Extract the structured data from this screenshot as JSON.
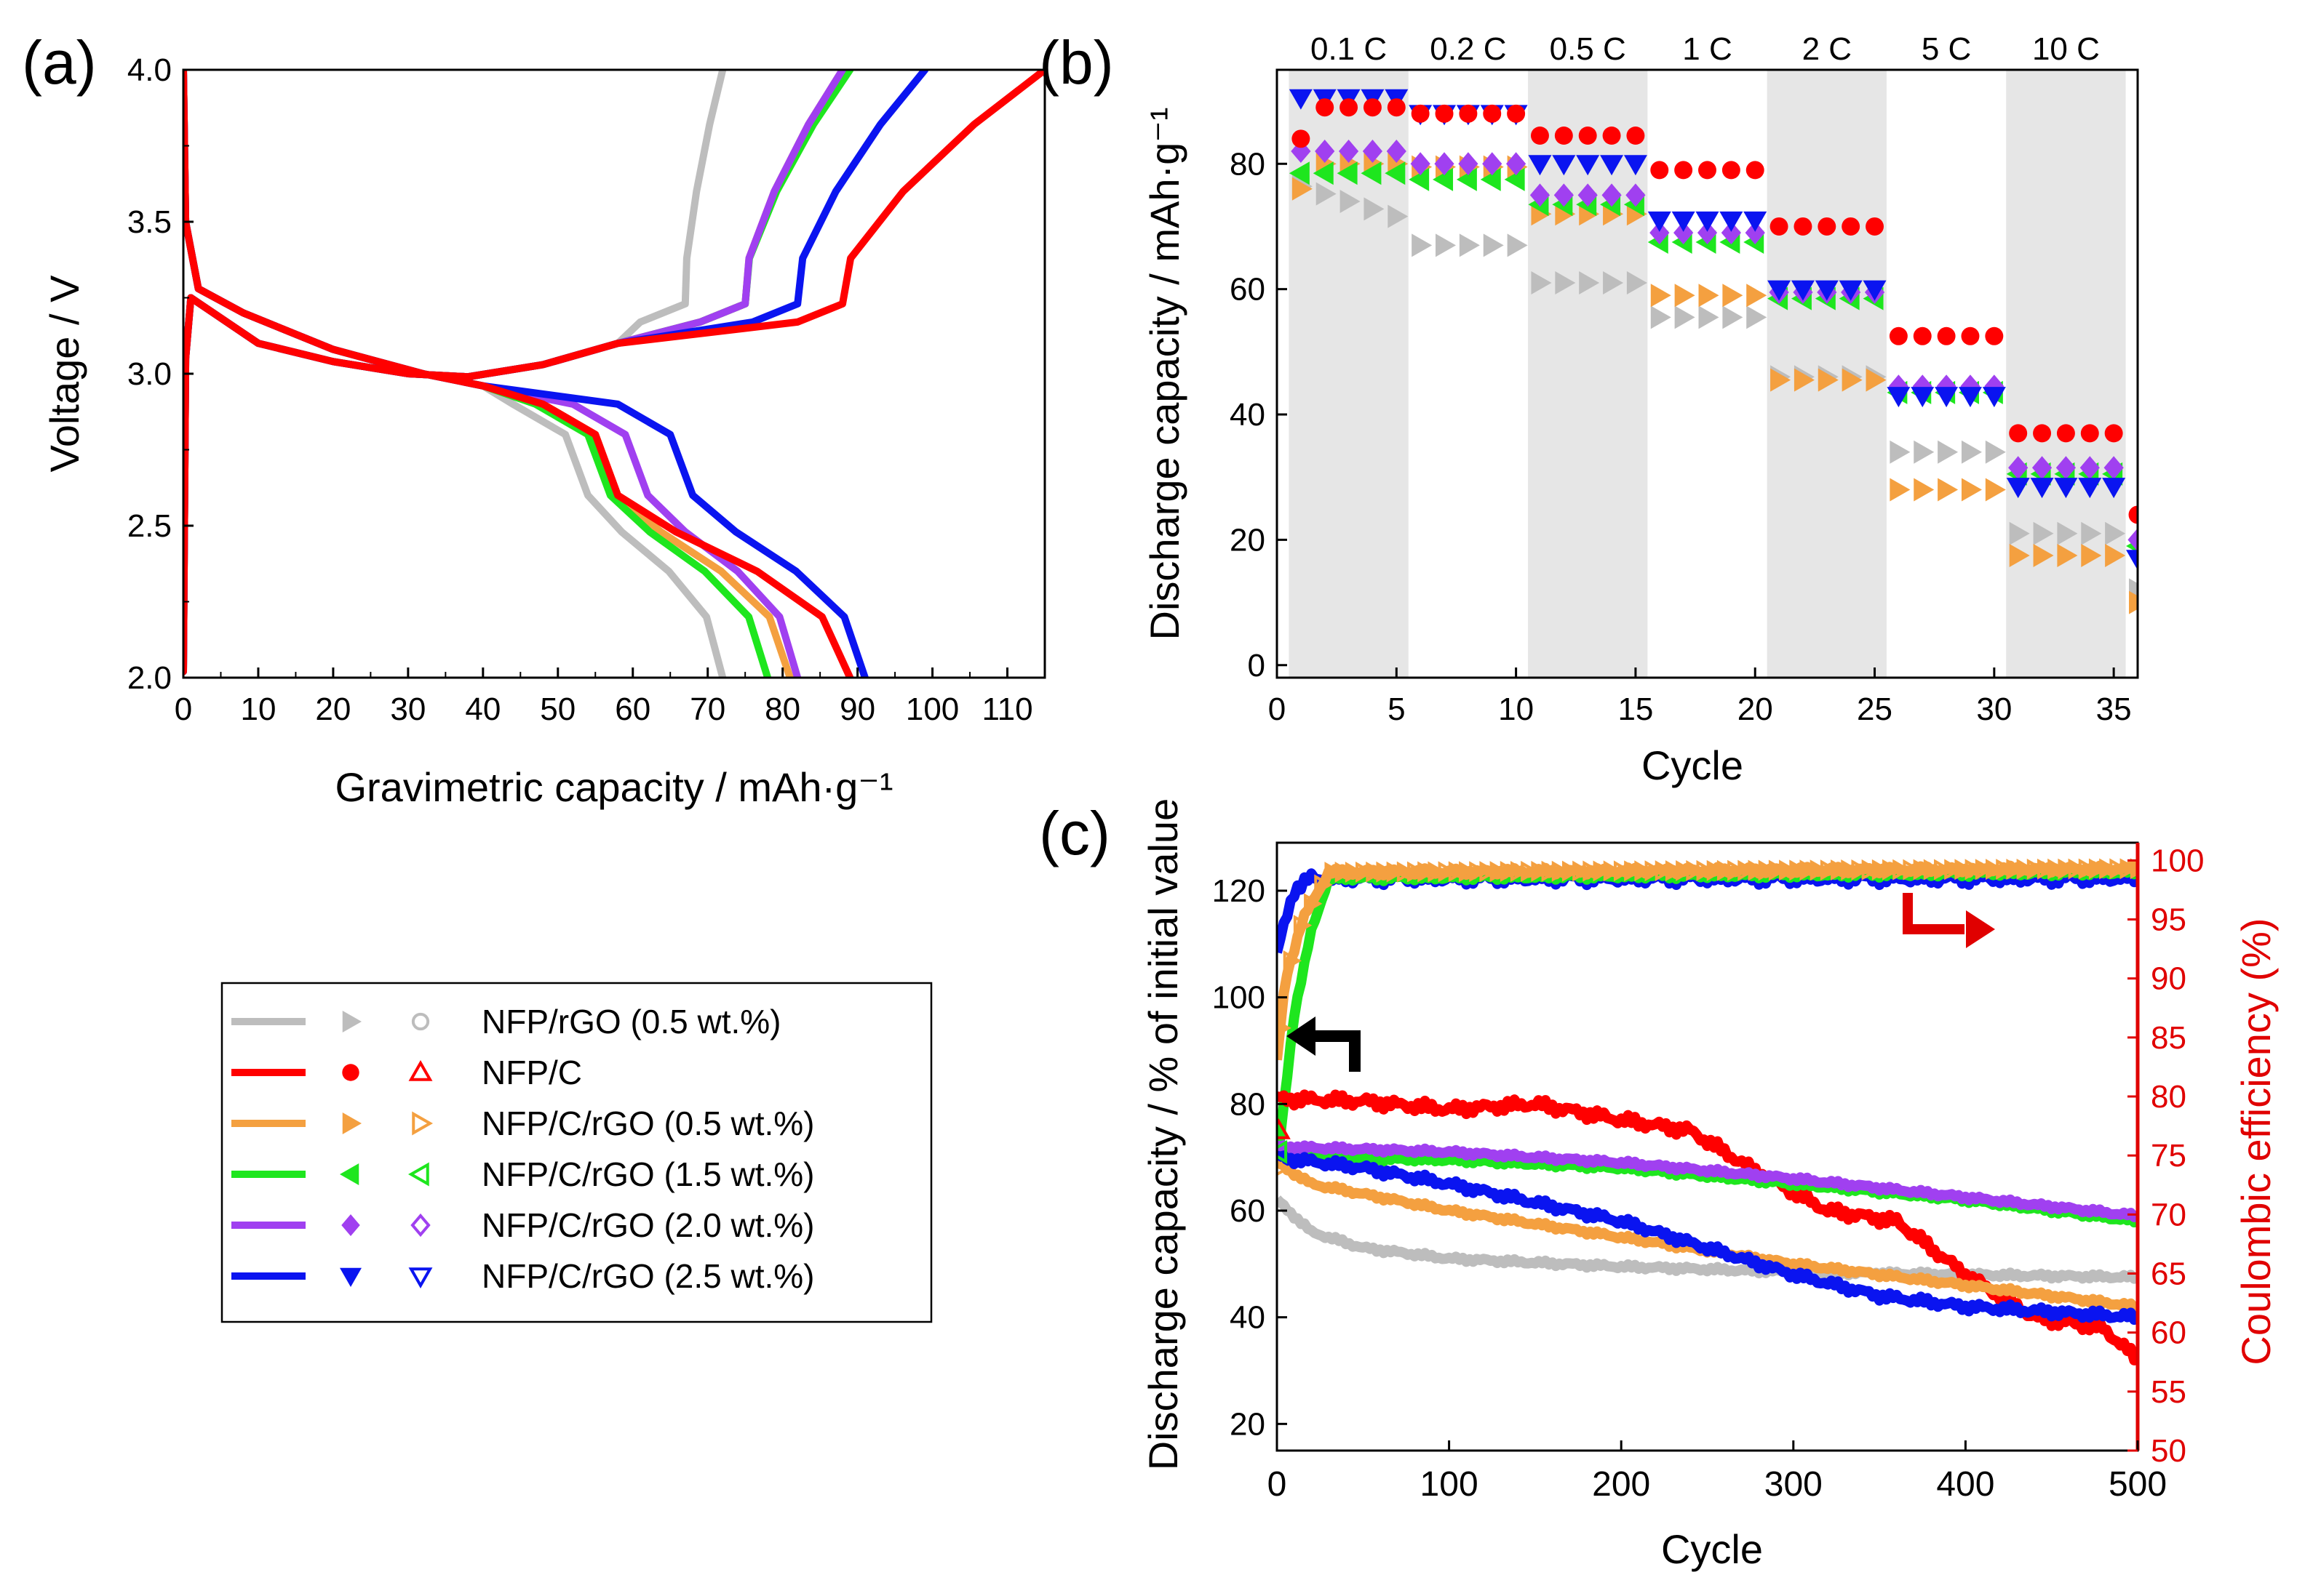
{
  "panel_labels": [
    "(a)",
    "(b)",
    "(c)"
  ],
  "colors": {
    "NFP/rGO (0.5 wt.%)": "#bdbdbd",
    "NFP/C": "#ff0000",
    "NFP/C/rGO (0.5 wt.%)": "#f4a040",
    "NFP/C/rGO (1.5 wt.%)": "#1ee61e",
    "NFP/C/rGO (2.0 wt.%)": "#a040f0",
    "NFP/C/rGO (2.5 wt.%)": "#0a14f0",
    "axis": "#000000",
    "ce_axis": "#e00000",
    "band": "#e6e6e6"
  },
  "legend": {
    "entries": [
      {
        "label": "NFP/rGO (0.5 wt.%)",
        "filled_marker": "triangle-right",
        "open_marker": "circle"
      },
      {
        "label": "NFP/C",
        "filled_marker": "circle",
        "open_marker": "triangle-up"
      },
      {
        "label": "NFP/C/rGO (0.5 wt.%)",
        "filled_marker": "triangle-right",
        "open_marker": "triangle-right"
      },
      {
        "label": "NFP/C/rGO (1.5 wt.%)",
        "filled_marker": "triangle-left",
        "open_marker": "triangle-left"
      },
      {
        "label": "NFP/C/rGO (2.0 wt.%)",
        "filled_marker": "diamond",
        "open_marker": "diamond"
      },
      {
        "label": "NFP/C/rGO (2.5 wt.%)",
        "filled_marker": "triangle-down",
        "open_marker": "triangle-down"
      }
    ]
  },
  "chart_data": [
    {
      "id": "a",
      "type": "line",
      "xlabel": "Gravimetric capacity / mAh·g⁻¹",
      "ylabel": "Voltage / V",
      "xlim": [
        0,
        115
      ],
      "ylim": [
        2.0,
        4.0
      ],
      "xticks": [
        0,
        10,
        20,
        30,
        40,
        50,
        60,
        70,
        80,
        90,
        100,
        110
      ],
      "xtick_labels": [
        "0",
        "10",
        "20",
        "30",
        "40",
        "50",
        "60",
        "70",
        "80",
        "90",
        "100",
        "110"
      ],
      "yticks": [
        2.0,
        2.5,
        3.0,
        3.5,
        4.0
      ],
      "ytick_labels": [
        "2.0",
        "2.5",
        "3.0",
        "3.5",
        "4.0"
      ],
      "series": [
        {
          "name": "NFP/rGO (0.5 wt.%)",
          "charge_end": 72,
          "discharge_end": 72,
          "plateau_end": 54,
          "charge_knee": 67
        },
        {
          "name": "NFP/C",
          "charge_end": 115,
          "discharge_end": 89,
          "plateau_end": 58,
          "charge_knee": 88
        },
        {
          "name": "NFP/C/rGO (0.5 wt.%)",
          "charge_end": 88,
          "discharge_end": 81,
          "plateau_end": 58,
          "charge_knee": 75
        },
        {
          "name": "NFP/C/rGO (1.5 wt.%)",
          "charge_end": 89,
          "discharge_end": 78,
          "plateau_end": 57,
          "charge_knee": 75
        },
        {
          "name": "NFP/C/rGO (2.0 wt.%)",
          "charge_end": 88,
          "discharge_end": 82,
          "plateau_end": 62,
          "charge_knee": 75
        },
        {
          "name": "NFP/C/rGO (2.5 wt.%)",
          "charge_end": 99,
          "discharge_end": 91,
          "plateau_end": 68,
          "charge_knee": 82
        }
      ]
    },
    {
      "id": "b",
      "type": "scatter",
      "xlabel": "Cycle",
      "ylabel": "Discharge capacity / mAh·g⁻¹",
      "xlim": [
        0,
        36
      ],
      "ylim": [
        -2,
        95
      ],
      "xticks": [
        0,
        5,
        10,
        15,
        20,
        25,
        30,
        35
      ],
      "xtick_labels": [
        "0",
        "5",
        "10",
        "15",
        "20",
        "25",
        "30",
        "35"
      ],
      "yticks": [
        0,
        20,
        40,
        60,
        80
      ],
      "ytick_labels": [
        "0",
        "20",
        "40",
        "60",
        "80"
      ],
      "rates": [
        "0.1 C",
        "0.2 C",
        "0.5 C",
        "1 C",
        "2 C",
        "5 C",
        "10 C"
      ],
      "bands": [
        [
          0.5,
          5.5
        ],
        [
          10.5,
          15.5
        ],
        [
          20.5,
          25.5
        ],
        [
          30.5,
          35.5
        ]
      ],
      "series": [
        {
          "name": "NFP/rGO (0.5 wt.%)",
          "marker": "triangle-right",
          "rate_values": [
            74,
            67,
            61,
            55.5,
            46,
            34,
            21
          ],
          "last": 12
        },
        {
          "name": "NFP/C",
          "marker": "circle",
          "rate_values": [
            89,
            88,
            84.5,
            79,
            70,
            52.5,
            37
          ],
          "first": 84,
          "last": 24
        },
        {
          "name": "NFP/C/rGO (0.5 wt.%)",
          "marker": "triangle-right",
          "rate_values": [
            80,
            79.5,
            72,
            59,
            45.5,
            28,
            17.5
          ],
          "first": 76,
          "last": 10
        },
        {
          "name": "NFP/C/rGO (1.5 wt.%)",
          "marker": "triangle-left",
          "rate_values": [
            78.5,
            77.5,
            73.5,
            67.5,
            58.5,
            43.5,
            30.5
          ],
          "last": 19
        },
        {
          "name": "NFP/C/rGO (2.0 wt.%)",
          "marker": "diamond",
          "rate_values": [
            82,
            80,
            75,
            69,
            59.5,
            44.5,
            31.5
          ],
          "last": 20
        },
        {
          "name": "NFP/C/rGO (2.5 wt.%)",
          "marker": "triangle-down",
          "rate_values": [
            90.5,
            88,
            80,
            71,
            60,
            43,
            28.5
          ],
          "last": 17
        }
      ]
    },
    {
      "id": "c",
      "type": "line",
      "xlabel": "Cycle",
      "ylabel": "Discharge capacity / % of initial value",
      "y2label": "Coulombic efficiency (%)",
      "xlim": [
        0,
        500
      ],
      "ylim": [
        15,
        129
      ],
      "y2lim": [
        50,
        101.5
      ],
      "xticks": [
        0,
        100,
        200,
        300,
        400,
        500
      ],
      "xtick_labels": [
        "0",
        "100",
        "200",
        "300",
        "400",
        "500"
      ],
      "yticks": [
        20,
        40,
        60,
        80,
        100,
        120
      ],
      "ytick_labels": [
        "20",
        "40",
        "60",
        "80",
        "100",
        "120"
      ],
      "y2ticks": [
        50,
        55,
        60,
        65,
        70,
        75,
        80,
        85,
        90,
        95,
        100
      ],
      "y2tick_labels": [
        "50",
        "55",
        "60",
        "65",
        "70",
        "75",
        "80",
        "85",
        "90",
        "95",
        "100"
      ],
      "capacity_series": [
        {
          "name": "NFP/rGO (0.5 wt.%)",
          "x": [
            0,
            20,
            50,
            100,
            200,
            300,
            400,
            500
          ],
          "y": [
            62,
            56,
            53,
            51,
            49.5,
            48.5,
            48,
            47.5
          ]
        },
        {
          "name": "NFP/C",
          "x": [
            0,
            50,
            100,
            150,
            200,
            240,
            280,
            320,
            360,
            400,
            440,
            480,
            500
          ],
          "y": [
            81,
            80.5,
            79,
            80,
            77,
            75,
            67,
            60,
            58,
            48,
            40,
            38,
            32
          ]
        },
        {
          "name": "NFP/C/rGO (0.5 wt.%)",
          "x": [
            0,
            20,
            100,
            200,
            300,
            400,
            500
          ],
          "y": [
            69,
            65,
            60,
            55,
            50,
            46,
            42
          ]
        },
        {
          "name": "NFP/C/rGO (1.5 wt.%)",
          "x": [
            0,
            100,
            200,
            300,
            400,
            500
          ],
          "y": [
            70,
            69.5,
            68,
            65,
            62,
            58
          ]
        },
        {
          "name": "NFP/C/rGO (2.0 wt.%)",
          "x": [
            0,
            100,
            200,
            300,
            400,
            500
          ],
          "y": [
            72,
            71,
            69,
            66,
            62.5,
            59
          ]
        },
        {
          "name": "NFP/C/rGO (2.5 wt.%)",
          "x": [
            0,
            50,
            100,
            200,
            250,
            300,
            350,
            400,
            500
          ],
          "y": [
            70,
            68,
            65,
            58,
            53,
            48,
            44,
            42,
            40
          ]
        }
      ],
      "ce_series": [
        {
          "name": "NFP/C/rGO (2.5 wt.%)",
          "x": [
            0,
            5,
            10,
            20,
            500
          ],
          "y": [
            92,
            95,
            97.5,
            98.5,
            98.5
          ]
        },
        {
          "name": "NFP/C/rGO (1.5 wt.%)",
          "x": [
            0,
            10,
            20,
            30,
            500
          ],
          "y": [
            74,
            87,
            94,
            98.5,
            99
          ]
        },
        {
          "name": "NFP/C/rGO (0.5 wt.%)",
          "x": [
            0,
            5,
            15,
            30,
            500
          ],
          "y": [
            83,
            90,
            95,
            99,
            99.3
          ]
        }
      ],
      "open_marker_points": [
        {
          "name": "NFP/C",
          "cycle": 1,
          "value": 75
        },
        {
          "name": "NFP/C/rGO (1.5 wt.%)",
          "cycle": 1,
          "value": 71
        },
        {
          "name": "NFP/C/rGO (0.5 wt.%)",
          "cycle": 1,
          "value": 68
        }
      ]
    }
  ]
}
